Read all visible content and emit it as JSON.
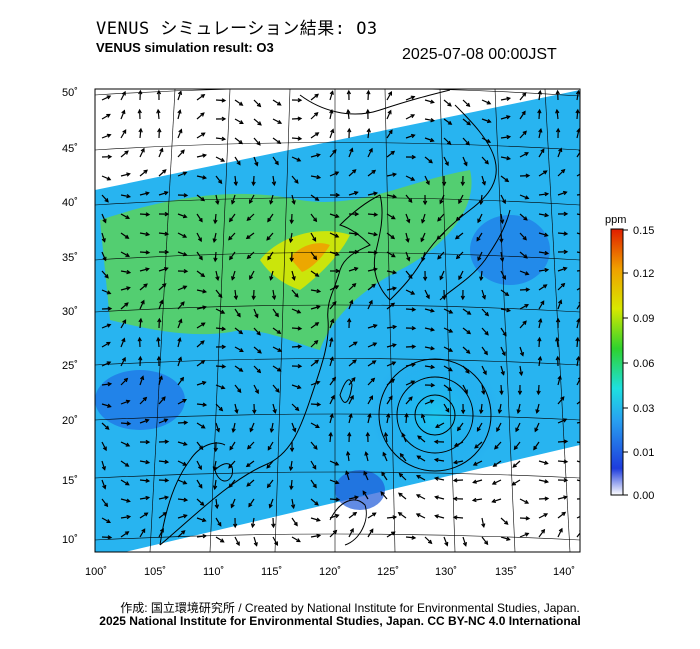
{
  "header": {
    "title_jp": "VENUS シミュレーション結果: O3",
    "title_en": "VENUS simulation result: O3",
    "datetime": "2025-07-08 00:00JST"
  },
  "map": {
    "lat_labels": [
      "50˚",
      "45˚",
      "40˚",
      "35˚",
      "30˚",
      "25˚",
      "20˚",
      "15˚",
      "10˚"
    ],
    "lon_labels": [
      "100˚",
      "105˚",
      "110˚",
      "115˚",
      "120˚",
      "125˚",
      "130˚",
      "135˚",
      "140˚"
    ],
    "features": [
      "ozone-field",
      "wind-vectors",
      "coastlines",
      "typhoon-vortex"
    ]
  },
  "colorbar": {
    "unit": "ppm",
    "ticks": [
      "0.15",
      "0.12",
      "0.09",
      "0.06",
      "0.03",
      "0.01",
      "0.00"
    ],
    "colors": [
      "#ffffff",
      "#1e3cdc",
      "#28a0f0",
      "#1ee0e0",
      "#2ed22e",
      "#d8e800",
      "#f0a000",
      "#e01e00"
    ]
  },
  "footer": {
    "credit": "作成: 国立環境研究所 / Created by National Institute for Environmental Studies, Japan.",
    "license": "2025 National Institute for Environmental Studies, Japan. CC BY-NC 4.0 International"
  }
}
